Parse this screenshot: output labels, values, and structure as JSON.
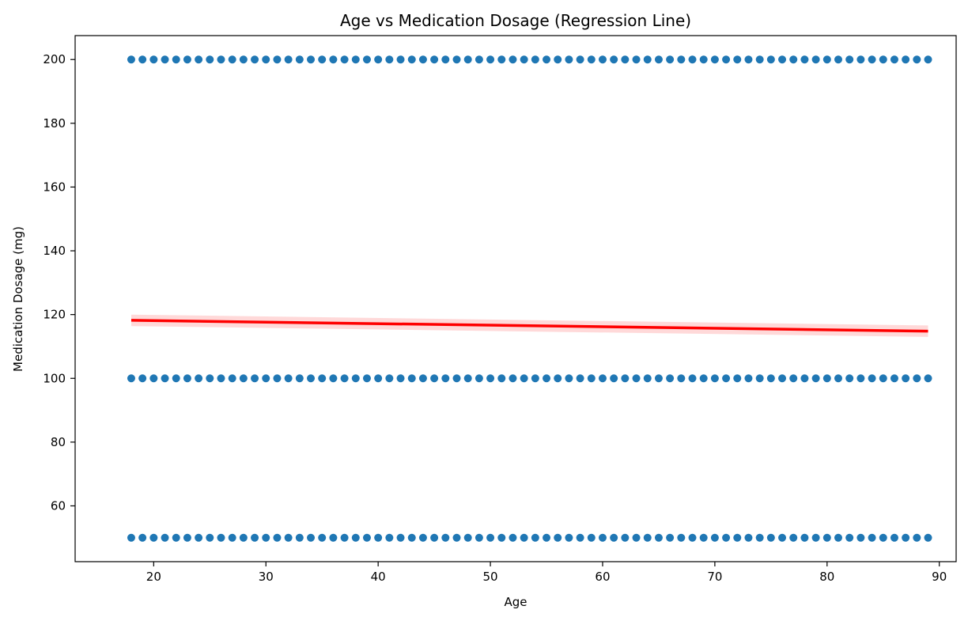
{
  "chart_data": {
    "type": "scatter",
    "title": "Age vs Medication Dosage (Regression Line)",
    "xlabel": "Age",
    "ylabel": "Medication Dosage (mg)",
    "xlim": [
      13,
      91.5
    ],
    "ylim": [
      42.5,
      207.5
    ],
    "xticks": [
      20,
      30,
      40,
      50,
      60,
      70,
      80,
      90
    ],
    "yticks": [
      60,
      80,
      100,
      120,
      140,
      160,
      180,
      200
    ],
    "grid": false,
    "series": [
      {
        "kind": "scatter",
        "color": "#1f77b4",
        "ages": [
          18,
          19,
          20,
          21,
          22,
          23,
          24,
          25,
          26,
          27,
          28,
          29,
          30,
          31,
          32,
          33,
          34,
          35,
          36,
          37,
          38,
          39,
          40,
          41,
          42,
          43,
          44,
          45,
          46,
          47,
          48,
          49,
          50,
          51,
          52,
          53,
          54,
          55,
          56,
          57,
          58,
          59,
          60,
          61,
          62,
          63,
          64,
          65,
          66,
          67,
          68,
          69,
          70,
          71,
          72,
          73,
          74,
          75,
          76,
          77,
          78,
          79,
          80,
          81,
          82,
          83,
          84,
          85,
          86,
          87,
          88,
          89
        ],
        "dosage_levels": [
          50,
          100,
          200
        ]
      },
      {
        "kind": "regression",
        "color": "#ff0000",
        "ci_color": "#ff0000",
        "x": [
          18,
          89
        ],
        "y": [
          118.2,
          114.8
        ],
        "ci_halfwidth": [
          1.8,
          1.8
        ]
      }
    ]
  }
}
